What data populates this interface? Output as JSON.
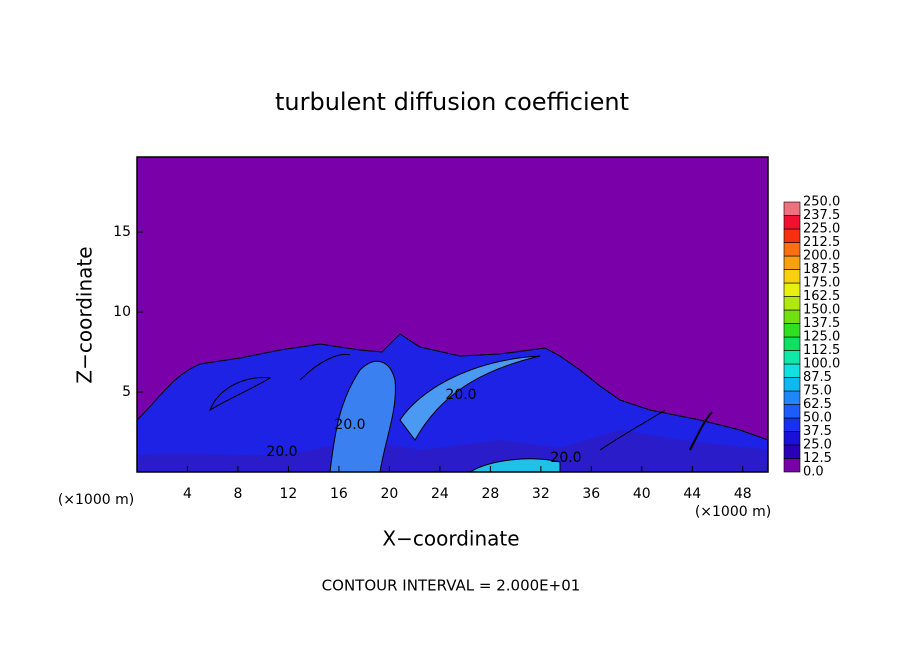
{
  "chart_data": {
    "type": "contour",
    "title": "turbulent diffusion coefficient",
    "xlabel": "X−coordinate",
    "ylabel": "Z−coordinate",
    "x_unit": "(×1000 m)",
    "x_unit_right": "(×1000 m)",
    "footer": "CONTOUR INTERVAL = 2.000E+01",
    "contour_labels": [
      "20.0",
      "20.0",
      "20.0",
      "20.0"
    ],
    "xlim": [
      0,
      50
    ],
    "xticks": [
      4,
      8,
      12,
      16,
      20,
      24,
      28,
      32,
      36,
      40,
      44,
      48
    ],
    "ylim": [
      0,
      19.7
    ],
    "yticks": [
      5,
      10,
      15
    ],
    "background_color": "#7a00aa",
    "colorbar": {
      "levels": [
        {
          "value": 0,
          "label": "0.0"
        },
        {
          "value": 12.5,
          "label": "12.5"
        },
        {
          "value": 25,
          "label": "25.0"
        },
        {
          "value": 37.5,
          "label": "37.5"
        },
        {
          "value": 50,
          "label": "50.0"
        },
        {
          "value": 62.5,
          "label": "62.5"
        },
        {
          "value": 75,
          "label": "75.0"
        },
        {
          "value": 87.5,
          "label": "87.5"
        },
        {
          "value": 100,
          "label": "100.0"
        },
        {
          "value": 112.5,
          "label": "112.5"
        },
        {
          "value": 125,
          "label": "125.0"
        },
        {
          "value": 137.5,
          "label": "137.5"
        },
        {
          "value": 150,
          "label": "150.0"
        },
        {
          "value": 162.5,
          "label": "162.5"
        },
        {
          "value": 175,
          "label": "175.0"
        },
        {
          "value": 187.5,
          "label": "187.5"
        },
        {
          "value": 200,
          "label": "200.0"
        },
        {
          "value": 212.5,
          "label": "212.5"
        },
        {
          "value": 225,
          "label": "225.0"
        },
        {
          "value": 237.5,
          "label": "237.5"
        },
        {
          "value": 250,
          "label": "250.0"
        }
      ],
      "colors": [
        "#7a00aa",
        "#2a00b8",
        "#1a10d8",
        "#1830f0",
        "#1c5cf8",
        "#1e88f8",
        "#10b8f0",
        "#10e0e0",
        "#10e8a8",
        "#10e060",
        "#30e020",
        "#70e010",
        "#b0e810",
        "#e8f010",
        "#f8d010",
        "#f8a010",
        "#f87010",
        "#f83010",
        "#f01030",
        "#f07080"
      ]
    }
  }
}
